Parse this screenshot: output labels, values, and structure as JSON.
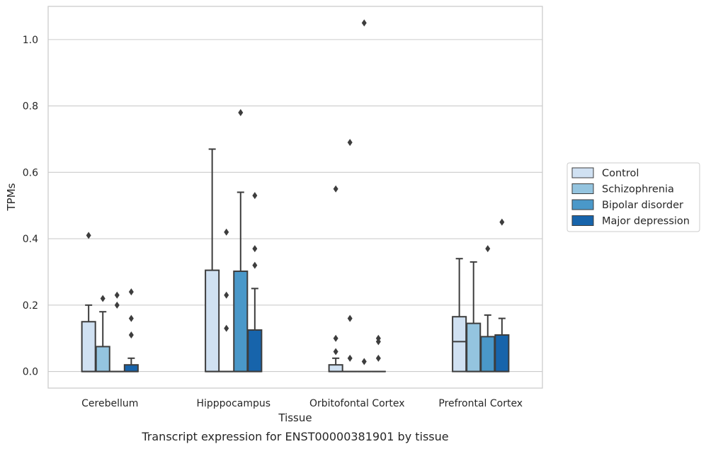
{
  "chart_data": {
    "type": "boxplot",
    "caption": "Transcript expression for ENST00000381901 by tissue",
    "xlabel": "Tissue",
    "ylabel": "TPMs",
    "ylim": [
      -0.05,
      1.1
    ],
    "yticks": [
      "0.0",
      "0.2",
      "0.4",
      "0.6",
      "0.8",
      "1.0"
    ],
    "grid": true,
    "legend_position": "right",
    "categories": [
      "Cerebellum",
      "Hipppocampus",
      "Orbitofontal Cortex",
      "Prefrontal Cortex"
    ],
    "series": [
      {
        "name": "Control",
        "color": "#d0e1f2"
      },
      {
        "name": "Schizophrenia",
        "color": "#94c4df"
      },
      {
        "name": "Bipolar disorder",
        "color": "#4a98c9"
      },
      {
        "name": "Major depression",
        "color": "#1764ab"
      }
    ],
    "boxes": [
      [
        {
          "q1": 0,
          "median": 0,
          "q3": 0.15,
          "whislo": 0,
          "whishi": 0.2,
          "fliers": [
            0.41
          ]
        },
        {
          "q1": 0,
          "median": 0,
          "q3": 0.075,
          "whislo": 0,
          "whishi": 0.18,
          "fliers": [
            0.22
          ]
        },
        {
          "q1": 0,
          "median": 0,
          "q3": 0,
          "whislo": 0,
          "whishi": 0,
          "fliers": [
            0.23,
            0.2
          ]
        },
        {
          "q1": 0,
          "median": 0,
          "q3": 0.02,
          "whislo": 0,
          "whishi": 0.04,
          "fliers": [
            0.24,
            0.16,
            0.11
          ]
        }
      ],
      [
        {
          "q1": 0,
          "median": 0,
          "q3": 0.305,
          "whislo": 0,
          "whishi": 0.67,
          "fliers": []
        },
        {
          "q1": 0,
          "median": 0,
          "q3": 0,
          "whislo": 0,
          "whishi": 0,
          "fliers": [
            0.42,
            0.23,
            0.13
          ]
        },
        {
          "q1": 0,
          "median": 0,
          "q3": 0.302,
          "whislo": 0,
          "whishi": 0.54,
          "fliers": [
            0.78
          ]
        },
        {
          "q1": 0,
          "median": 0,
          "q3": 0.125,
          "whislo": 0,
          "whishi": 0.25,
          "fliers": [
            0.53,
            0.37,
            0.32
          ]
        }
      ],
      [
        {
          "q1": 0,
          "median": 0,
          "q3": 0.02,
          "whislo": 0,
          "whishi": 0.04,
          "fliers": [
            0.55,
            0.1,
            0.06
          ]
        },
        {
          "q1": 0,
          "median": 0,
          "q3": 0,
          "whislo": 0,
          "whishi": 0,
          "fliers": [
            0.69,
            0.16,
            0.04
          ]
        },
        {
          "q1": 0,
          "median": 0,
          "q3": 0,
          "whislo": 0,
          "whishi": 0,
          "fliers": [
            1.05,
            0.03
          ]
        },
        {
          "q1": 0,
          "median": 0,
          "q3": 0,
          "whislo": 0,
          "whishi": 0,
          "fliers": [
            0.1,
            0.09,
            0.04
          ]
        }
      ],
      [
        {
          "q1": 0,
          "median": 0.09,
          "q3": 0.165,
          "whislo": 0,
          "whishi": 0.34,
          "fliers": []
        },
        {
          "q1": 0,
          "median": 0,
          "q3": 0.145,
          "whislo": 0,
          "whishi": 0.33,
          "fliers": []
        },
        {
          "q1": 0,
          "median": 0,
          "q3": 0.105,
          "whislo": 0,
          "whishi": 0.17,
          "fliers": [
            0.37
          ]
        },
        {
          "q1": 0,
          "median": 0,
          "q3": 0.11,
          "whislo": 0,
          "whishi": 0.16,
          "fliers": [
            0.45
          ]
        }
      ]
    ]
  }
}
